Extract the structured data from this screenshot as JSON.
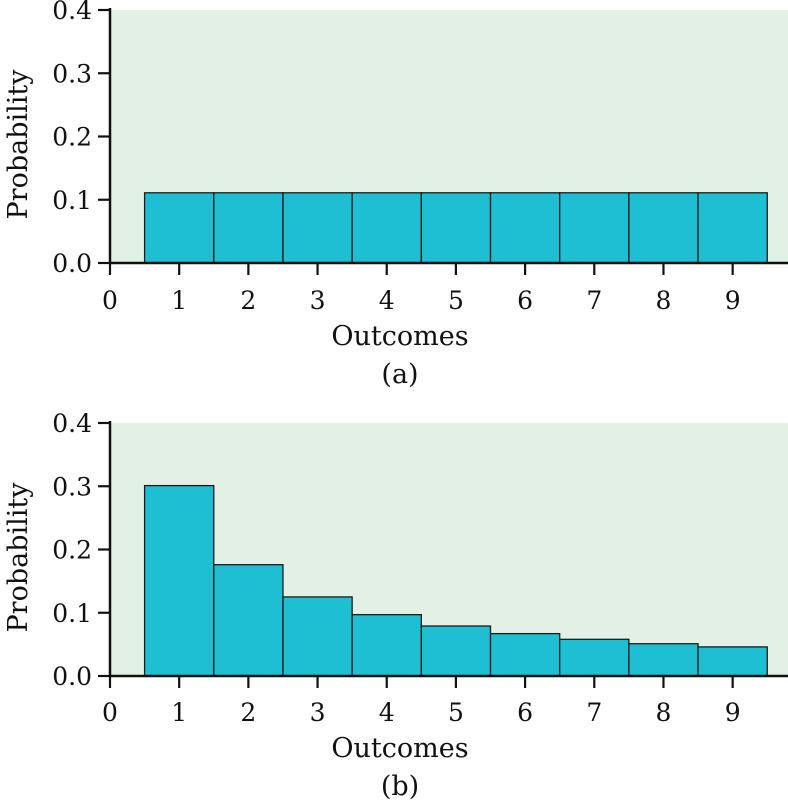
{
  "colors": {
    "plot_background": "#e2f0e6",
    "bar_fill": "#1fbfd3",
    "bar_stroke": "#1a1a1a",
    "axis": "#111111"
  },
  "chart_data": [
    {
      "type": "bar",
      "panel_label": "(a)",
      "xlabel": "Outcomes",
      "ylabel": "Probability",
      "categories": [
        "1",
        "2",
        "3",
        "4",
        "5",
        "6",
        "7",
        "8",
        "9"
      ],
      "values": [
        0.111,
        0.111,
        0.111,
        0.111,
        0.111,
        0.111,
        0.111,
        0.111,
        0.111
      ],
      "xlim": [
        0,
        9.8
      ],
      "ylim": [
        0,
        0.4
      ],
      "x_ticks": [
        "0",
        "1",
        "2",
        "3",
        "4",
        "5",
        "6",
        "7",
        "8",
        "9"
      ],
      "y_ticks": [
        "0.0",
        "0.1",
        "0.2",
        "0.3",
        "0.4"
      ],
      "grid": false
    },
    {
      "type": "bar",
      "panel_label": "(b)",
      "xlabel": "Outcomes",
      "ylabel": "Probability",
      "categories": [
        "1",
        "2",
        "3",
        "4",
        "5",
        "6",
        "7",
        "8",
        "9"
      ],
      "values": [
        0.301,
        0.176,
        0.125,
        0.097,
        0.079,
        0.067,
        0.058,
        0.051,
        0.046
      ],
      "xlim": [
        0,
        9.8
      ],
      "ylim": [
        0,
        0.4
      ],
      "x_ticks": [
        "0",
        "1",
        "2",
        "3",
        "4",
        "5",
        "6",
        "7",
        "8",
        "9"
      ],
      "y_ticks": [
        "0.0",
        "0.1",
        "0.2",
        "0.3",
        "0.4"
      ],
      "grid": false
    }
  ]
}
